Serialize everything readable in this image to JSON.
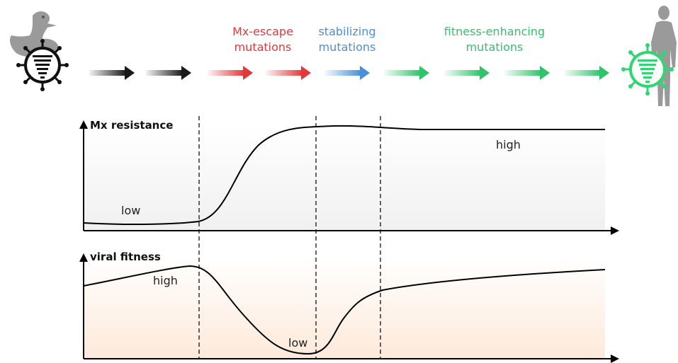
{
  "phases": [
    {
      "line1": "Mx-escape",
      "line2": "mutations",
      "color": "#e2383b"
    },
    {
      "line1": "stabilizing",
      "line2": "mutations",
      "color": "#4a8fd8"
    },
    {
      "line1": "fitness-enhancing",
      "line2": "mutations",
      "color": "#2fc46a"
    }
  ],
  "arrows": [
    {
      "color": "#1a1a1a"
    },
    {
      "color": "#1a1a1a"
    },
    {
      "color": "#e2383b"
    },
    {
      "color": "#e2383b"
    },
    {
      "color": "#4a8fd8"
    },
    {
      "color": "#2fc46a"
    },
    {
      "color": "#2fc46a"
    },
    {
      "color": "#2fc46a"
    },
    {
      "color": "#2fc46a"
    }
  ],
  "icons": {
    "source_host": "duck-icon",
    "source_virus": "avian-virus-icon",
    "target_host": "human-icon",
    "target_virus": "adapted-virus-icon",
    "virus_green": "#2fd672"
  },
  "panels": {
    "mx_resistance": {
      "title": "Mx resistance",
      "low_label": "low",
      "high_label": "high",
      "fill": "#f3f3f3"
    },
    "viral_fitness": {
      "title": "viral fitness",
      "high_label": "high",
      "low_label": "low",
      "fill": "#fdf0e6"
    }
  }
}
